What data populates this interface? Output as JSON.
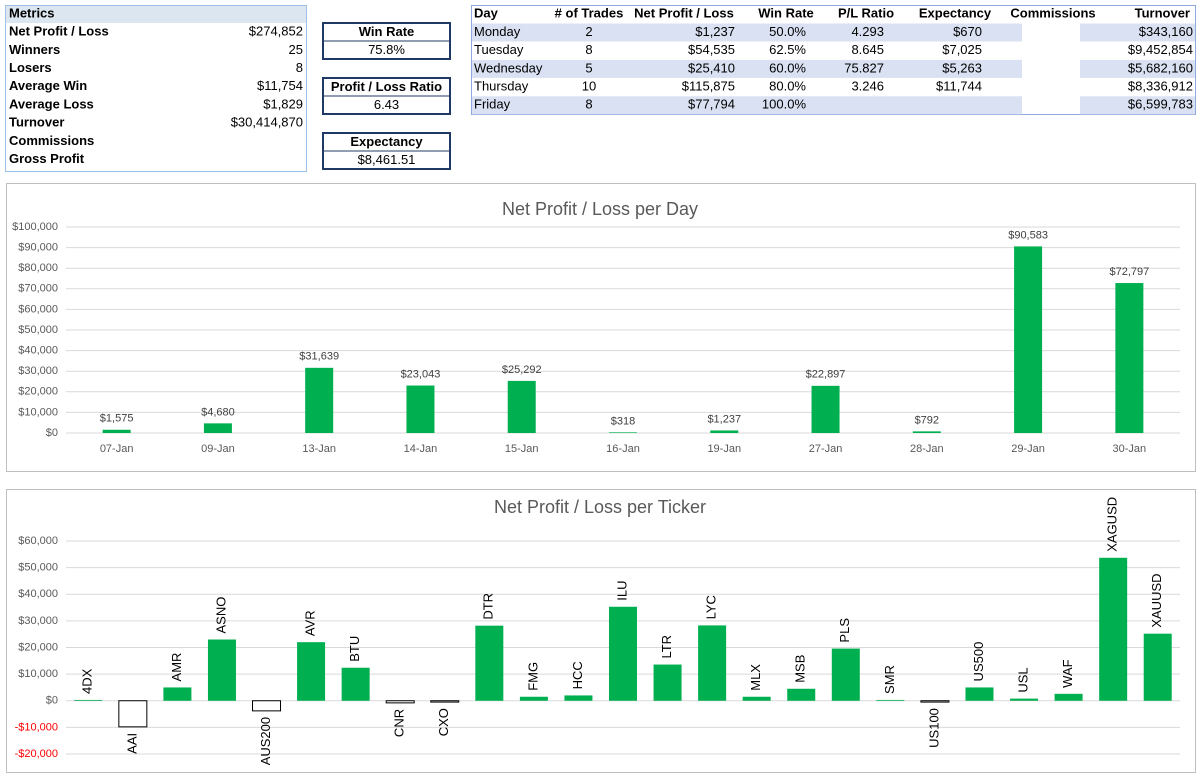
{
  "metrics": {
    "header": "Metrics",
    "rows": [
      {
        "label": "Net Profit / Loss",
        "value": "$274,852"
      },
      {
        "label": "Winners",
        "value": "25"
      },
      {
        "label": "Losers",
        "value": "8"
      },
      {
        "label": "Average Win",
        "value": "$11,754"
      },
      {
        "label": "Average Loss",
        "value": "$1,829"
      },
      {
        "label": "Turnover",
        "value": "$30,414,870"
      },
      {
        "label": "Commissions"
      },
      {
        "label": "Gross Profit"
      }
    ]
  },
  "kpis": [
    {
      "label": "Win Rate",
      "value": "75.8%"
    },
    {
      "label": "Profit / Loss Ratio",
      "value": "6.43"
    },
    {
      "label": "Expectancy",
      "value": "$8,461.51"
    }
  ],
  "day_table": {
    "columns": [
      "Day",
      "# of Trades",
      "Net Profit / Loss",
      "Win Rate",
      "P/L Ratio",
      "Expectancy",
      "Commissions",
      "Turnover"
    ],
    "rows": [
      [
        "Monday",
        "2",
        "$1,237",
        "50.0%",
        "4.293",
        "$670",
        null,
        "$343,160"
      ],
      [
        "Tuesday",
        "8",
        "$54,535",
        "62.5%",
        "8.645",
        "$7,025",
        null,
        "$9,452,854"
      ],
      [
        "Wednesday",
        "5",
        "$25,410",
        "60.0%",
        "75.827",
        "$5,263",
        null,
        "$5,682,160"
      ],
      [
        "Thursday",
        "10",
        "$115,875",
        "80.0%",
        "3.246",
        "$11,744",
        null,
        "$8,336,912"
      ],
      [
        "Friday",
        "8",
        "$77,794",
        "100.0%",
        null,
        null,
        null,
        "$6,599,783"
      ]
    ]
  },
  "chart_data": [
    {
      "type": "bar",
      "title": "Net Profit / Loss per Day",
      "categories": [
        "07-Jan",
        "09-Jan",
        "13-Jan",
        "14-Jan",
        "15-Jan",
        "16-Jan",
        "19-Jan",
        "27-Jan",
        "28-Jan",
        "29-Jan",
        "30-Jan"
      ],
      "values": [
        1575,
        4680,
        31639,
        23043,
        25292,
        318,
        1237,
        22897,
        792,
        90583,
        72797
      ],
      "value_labels": [
        "$1,575",
        "$4,680",
        "$31,639",
        "$23,043",
        "$25,292",
        "$318",
        "$1,237",
        "$22,897",
        "$792",
        "$90,583",
        "$72,797"
      ],
      "color": "#00b050",
      "ylim": [
        0,
        100000
      ],
      "yticks": [
        {
          "value": 0,
          "label": "$0"
        },
        {
          "value": 10000,
          "label": "$10,000"
        },
        {
          "value": 20000,
          "label": "$20,000"
        },
        {
          "value": 30000,
          "label": "$30,000"
        },
        {
          "value": 40000,
          "label": "$40,000"
        },
        {
          "value": 50000,
          "label": "$50,000"
        },
        {
          "value": 60000,
          "label": "$60,000"
        },
        {
          "value": 70000,
          "label": "$70,000"
        },
        {
          "value": 80000,
          "label": "$80,000"
        },
        {
          "value": 90000,
          "label": "$90,000"
        },
        {
          "value": 100000,
          "label": "$100,000"
        }
      ],
      "grid": true
    },
    {
      "type": "bar",
      "title": "Net Profit / Loss per Ticker",
      "categories": [
        "4DX",
        "AAI",
        "AMR",
        "ASNO",
        "AUS200",
        "AVR",
        "BTU",
        "CNR",
        "CXO",
        "DTR",
        "FMG",
        "HCC",
        "ILU",
        "LTR",
        "LYC",
        "MLX",
        "MSB",
        "PLS",
        "SMR",
        "US100",
        "US500",
        "USL",
        "WAF",
        "XAGUSD",
        "XAUUSD"
      ],
      "values": [
        300,
        -9800,
        5000,
        23000,
        -3800,
        22000,
        12400,
        -800,
        -500,
        28200,
        1500,
        2000,
        35300,
        13600,
        28300,
        1500,
        4500,
        19600,
        300,
        -500,
        5000,
        800,
        2600,
        53700,
        25200
      ],
      "color": "#00b050",
      "negative_color": "#ffffff",
      "negative_tick_color": "#ff0000",
      "ylim": [
        -20000,
        60000
      ],
      "yticks": [
        {
          "value": -20000,
          "label": "-$20,000"
        },
        {
          "value": -10000,
          "label": "-$10,000"
        },
        {
          "value": 0,
          "label": "$0"
        },
        {
          "value": 10000,
          "label": "$10,000"
        },
        {
          "value": 20000,
          "label": "$20,000"
        },
        {
          "value": 30000,
          "label": "$30,000"
        },
        {
          "value": 40000,
          "label": "$40,000"
        },
        {
          "value": 50000,
          "label": "$50,000"
        },
        {
          "value": 60000,
          "label": "$60,000"
        }
      ],
      "grid": true
    }
  ]
}
